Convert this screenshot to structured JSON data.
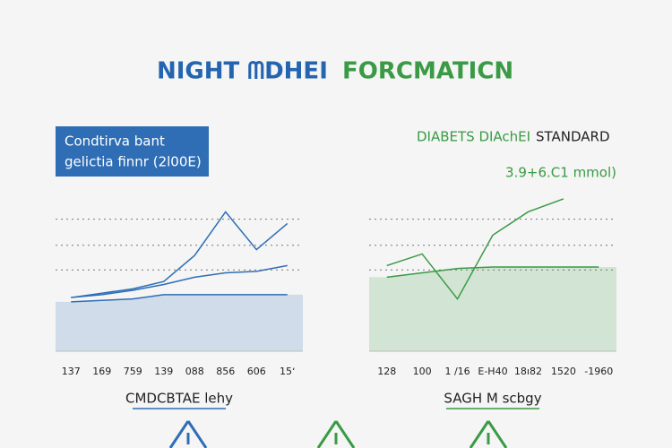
{
  "header": {
    "title_parts": [
      "NIGHT ᗰDHEI",
      "FORCMATICN"
    ]
  },
  "chart_data": [
    {
      "type": "line",
      "note": [
        "Condtirva bant",
        "gelictia finnr (2l00E)"
      ],
      "xlabel": "CMDCBTAE lehy",
      "categories": [
        "137",
        "169",
        "759",
        "139",
        "088",
        "856",
        "606",
        "15ʻ"
      ],
      "ylim": [
        0,
        110
      ],
      "ygrid": [
        56,
        73,
        91
      ],
      "series": [
        {
          "color": "#2f6db5",
          "values": [
            37,
            40,
            43,
            48,
            66,
            96,
            70,
            88
          ]
        },
        {
          "color": "#2f6db5",
          "values": [
            37,
            39,
            42,
            46,
            51,
            54,
            55,
            59
          ]
        },
        {
          "color": "#2f6db5",
          "values": [
            34,
            35,
            36,
            39,
            39,
            39,
            39,
            39
          ],
          "area": true
        }
      ]
    },
    {
      "type": "line",
      "note": [
        "DIABETS DIAchEI",
        "STANDARD",
        "3.9+6.C1 mmol)"
      ],
      "xlabel": "SAGH M scbgy",
      "categories": [
        "128",
        "100",
        "1 /16",
        "E-H40",
        "18ı82",
        "1520",
        "-1960"
      ],
      "ylim": [
        0,
        110
      ],
      "ygrid": [
        56,
        73,
        91
      ],
      "series": [
        {
          "color": "#3a9a45",
          "values": [
            59,
            67,
            36,
            80,
            96,
            105,
            null
          ]
        },
        {
          "color": "#3a9a45",
          "values": [
            51,
            54,
            57,
            58,
            58,
            58,
            58
          ],
          "area": true
        }
      ]
    }
  ]
}
